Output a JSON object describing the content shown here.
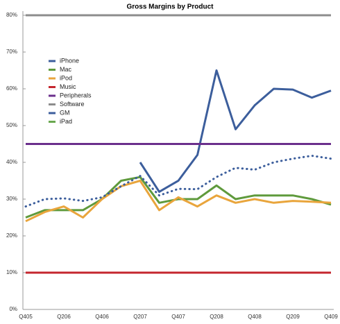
{
  "chart_data": {
    "type": "line",
    "title": "Gross Margins by Product",
    "categories": [
      "Q405",
      null,
      "Q206",
      null,
      "Q406",
      null,
      "Q207",
      null,
      "Q407",
      null,
      "Q208",
      null,
      "Q408",
      null,
      "Q209",
      null,
      "Q409"
    ],
    "ylim": [
      0,
      80
    ],
    "yticks": [
      {
        "value": 0,
        "label": "0%"
      },
      {
        "value": 10,
        "label": "10%"
      },
      {
        "value": 20,
        "label": "20%"
      },
      {
        "value": 30,
        "label": "30%"
      },
      {
        "value": 40,
        "label": "40%"
      },
      {
        "value": 50,
        "label": "50%"
      },
      {
        "value": 60,
        "label": "60%"
      },
      {
        "value": 70,
        "label": "70%"
      },
      {
        "value": 80,
        "label": "80%"
      }
    ],
    "series": [
      {
        "name": "iPhone",
        "color": "#3c5e9c",
        "values": [
          null,
          null,
          null,
          null,
          null,
          null,
          40,
          32,
          35,
          42,
          65,
          49,
          55.5,
          60,
          59.8,
          57.6,
          59.5
        ]
      },
      {
        "name": "Mac",
        "color": "#5f9a3c",
        "values": [
          25,
          27,
          27,
          27,
          30,
          35,
          36,
          29,
          30,
          30,
          33.7,
          30,
          31,
          31,
          31,
          30,
          28.5
        ]
      },
      {
        "name": "iPod",
        "color": "#e9a53c",
        "values": [
          24,
          26.5,
          28,
          25,
          30,
          33.5,
          35,
          27,
          30.5,
          28,
          31,
          29,
          30,
          29,
          29.5,
          29.3,
          29
        ]
      },
      {
        "name": "Music",
        "color": "#c4262e",
        "values": [
          10,
          10,
          10,
          10,
          10,
          10,
          10,
          10,
          10,
          10,
          10,
          10,
          10,
          10,
          10,
          10,
          10
        ]
      },
      {
        "name": "Peripherals",
        "color": "#6b2f8c",
        "values": [
          45,
          45,
          45,
          45,
          45,
          45,
          45,
          45,
          45,
          45,
          45,
          45,
          45,
          45,
          45,
          45,
          45
        ]
      },
      {
        "name": "Software",
        "color": "#8c8c8c",
        "values": [
          80,
          80,
          80,
          80,
          80,
          80,
          80,
          80,
          80,
          80,
          80,
          80,
          80,
          80,
          80,
          80,
          80
        ]
      },
      {
        "name": "GM",
        "color": "#3c5e9c",
        "dashed": true,
        "values": [
          28,
          30,
          30.2,
          29.5,
          30.5,
          33.5,
          36.3,
          31,
          32.8,
          32.7,
          36,
          38.5,
          38,
          40,
          41,
          41.8,
          41
        ]
      },
      {
        "name": "iPad",
        "color": "#6aa84f",
        "values": [
          null,
          null,
          null,
          null,
          null,
          null,
          null,
          null,
          null,
          null,
          null,
          null,
          null,
          null,
          null,
          null,
          null
        ]
      }
    ]
  }
}
